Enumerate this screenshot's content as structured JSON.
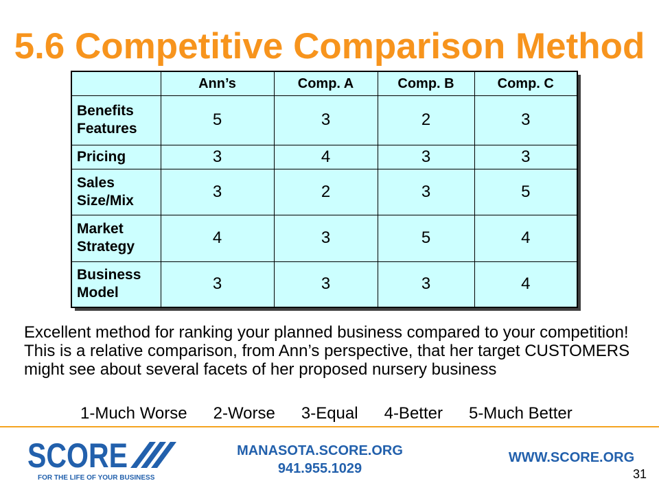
{
  "slide": {
    "title": "5.6 Competitive Comparison Method",
    "page_number": "31"
  },
  "table": {
    "columns": [
      "Ann’s",
      "Comp. A",
      "Comp. B",
      "Comp. C"
    ],
    "rows": [
      {
        "label": "Benefits Features",
        "values": [
          5,
          3,
          2,
          3
        ]
      },
      {
        "label": "Pricing",
        "values": [
          3,
          4,
          3,
          3
        ]
      },
      {
        "label": "Sales Size/Mix",
        "values": [
          3,
          2,
          3,
          5
        ]
      },
      {
        "label": "Market Strategy",
        "values": [
          4,
          3,
          5,
          4
        ]
      },
      {
        "label": "Business Model",
        "values": [
          3,
          3,
          3,
          4
        ]
      }
    ]
  },
  "content": {
    "description": "Excellent method for ranking your planned business compared to your competition! This is a relative comparison, from Ann’s perspective, that her target CUSTOMERS might see about several facets of her proposed nursery business",
    "rating_scale": [
      "1-Much Worse",
      "2-Worse",
      "3-Equal",
      "4-Better",
      "5-Much Better"
    ]
  },
  "footer": {
    "logo_wordmark": "SCORE",
    "logo_tagline": "FOR THE LIFE OF YOUR BUSINESS",
    "chapter_site": "MANASOTA.SCORE.ORG",
    "chapter_phone": "941.955.1029",
    "national_site": "WWW.SCORE.ORG"
  },
  "icons": {
    "logo_mark": "score-slashes-icon"
  },
  "colors": {
    "title": "#F7941D",
    "table_fill": "#CCFFFF",
    "table_shadow": "#404040",
    "brand_blue": "#2260AC",
    "divider": "#F5A31F"
  }
}
